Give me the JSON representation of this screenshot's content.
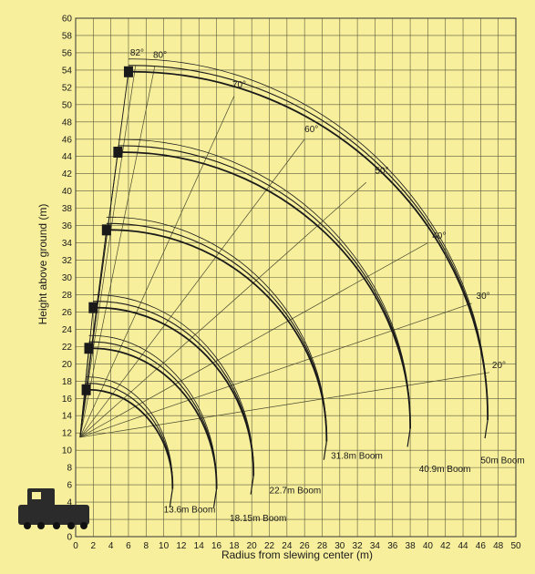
{
  "chart_data": {
    "type": "line",
    "title": "",
    "xlabel": "Radius from slewing center (m)",
    "ylabel": "Height above ground (m)",
    "xlim": [
      0,
      50
    ],
    "ylim": [
      0,
      60
    ],
    "x_ticks": [
      0,
      2,
      4,
      6,
      8,
      10,
      12,
      14,
      16,
      18,
      20,
      22,
      24,
      26,
      28,
      30,
      32,
      34,
      36,
      38,
      40,
      42,
      44,
      46,
      48,
      50
    ],
    "y_ticks": [
      0,
      2,
      4,
      6,
      8,
      10,
      12,
      14,
      16,
      18,
      20,
      22,
      24,
      26,
      28,
      30,
      32,
      34,
      36,
      38,
      40,
      42,
      44,
      46,
      48,
      50,
      52,
      54,
      56,
      58,
      60
    ],
    "grid": true,
    "colors": {
      "background": "#f7ef9c",
      "grid": "#5a5a3c",
      "curve": "#1a1a1a"
    },
    "booms": [
      {
        "label": "13.6m Boom",
        "tip_x": 1.2,
        "tip_y": 17.0,
        "end_x": 11.0,
        "end_y": 5.5,
        "label_x": 10.0,
        "label_y": 2.8
      },
      {
        "label": "18.15m Boom",
        "tip_x": 1.5,
        "tip_y": 21.8,
        "end_x": 16.0,
        "end_y": 5.5,
        "label_x": 17.5,
        "label_y": 1.8
      },
      {
        "label": "22.7m Boom",
        "tip_x": 2.0,
        "tip_y": 26.5,
        "end_x": 20.2,
        "end_y": 7.0,
        "label_x": 22.0,
        "label_y": 5.0
      },
      {
        "label": "31.8m Boom",
        "tip_x": 3.5,
        "tip_y": 35.5,
        "end_x": 28.5,
        "end_y": 11.0,
        "label_x": 29.0,
        "label_y": 9.0
      },
      {
        "label": "40.9m Boom",
        "tip_x": 4.8,
        "tip_y": 44.5,
        "end_x": 38.0,
        "end_y": 12.5,
        "label_x": 39.0,
        "label_y": 7.5
      },
      {
        "label": "50m Boom",
        "tip_x": 6.0,
        "tip_y": 53.8,
        "end_x": 46.8,
        "end_y": 13.5,
        "label_x": 46.0,
        "label_y": 8.5
      }
    ],
    "angle_lines": [
      {
        "label": "82°",
        "end_x": 6.8,
        "end_y": 54.5,
        "label_x": 6.2,
        "label_y": 55.7
      },
      {
        "label": "80°",
        "end_x": 9.0,
        "end_y": 54.5,
        "label_x": 8.8,
        "label_y": 55.4
      },
      {
        "label": "70°",
        "end_x": 18.0,
        "end_y": 51.0,
        "label_x": 17.8,
        "label_y": 52.0
      },
      {
        "label": "60°",
        "end_x": 26.0,
        "end_y": 46.0,
        "label_x": 26.0,
        "label_y": 46.8
      },
      {
        "label": "50°",
        "end_x": 33.0,
        "end_y": 41.0,
        "label_x": 34.0,
        "label_y": 42.0
      },
      {
        "label": "40°",
        "end_x": 40.0,
        "end_y": 34.0,
        "label_x": 40.5,
        "label_y": 34.5
      },
      {
        "label": "30°",
        "end_x": 45.0,
        "end_y": 27.0,
        "label_x": 45.5,
        "label_y": 27.5
      },
      {
        "label": "20°",
        "end_x": 47.0,
        "end_y": 19.0,
        "label_x": 47.3,
        "label_y": 19.5
      }
    ],
    "boom_pivot": {
      "x": 0.5,
      "y": 11.5
    }
  }
}
